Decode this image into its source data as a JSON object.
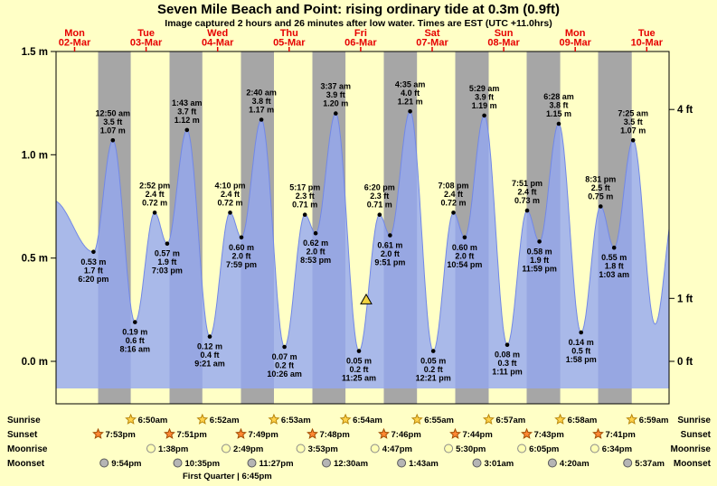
{
  "header": {
    "title": "Seven Mile Beach and Point: rising  ordinary tide at 0.3m (0.9ft)",
    "subtitle": "Image captured 2 hours and 26 minutes after low water. Times are EST (UTC +11.0hrs)"
  },
  "chart_data": {
    "type": "area",
    "title": "Seven Mile Beach and Point: rising  ordinary tide at 0.3m (0.9ft)",
    "subtitle": "Image captured 2 hours and 26 minutes after low water. Times are EST (UTC +11.0hrs)",
    "t_reference": "hours since 00:00 Mon 02-Mar (EST)",
    "time_axis": {
      "start_hours": 5.77,
      "end_hours": 211.5
    },
    "y_axis": {
      "min_m": -0.2055,
      "max_m": 1.5,
      "area_base_m": -0.131,
      "left_ticks": [
        {
          "label": "1.5 m",
          "value_m": 1.5
        },
        {
          "label": "1.0 m",
          "value_m": 1.0
        },
        {
          "label": "0.5 m",
          "value_m": 0.5
        },
        {
          "label": "0.0 m",
          "value_m": 0.0
        }
      ],
      "right_ticks": [
        {
          "label": "4 ft",
          "value_m": 1.2192
        },
        {
          "label": "1 ft",
          "value_m": 0.3048
        },
        {
          "label": "0 ft",
          "value_m": 0.0
        }
      ]
    },
    "days": [
      {
        "name": "Mon",
        "date": "02-Mar"
      },
      {
        "name": "Tue",
        "date": "03-Mar"
      },
      {
        "name": "Wed",
        "date": "04-Mar"
      },
      {
        "name": "Thu",
        "date": "05-Mar"
      },
      {
        "name": "Fri",
        "date": "06-Mar"
      },
      {
        "name": "Sat",
        "date": "07-Mar"
      },
      {
        "name": "Sun",
        "date": "08-Mar"
      },
      {
        "name": "Mon",
        "date": "09-Mar"
      },
      {
        "name": "Tue",
        "date": "10-Mar"
      }
    ],
    "extremes": [
      {
        "t": 4.6,
        "h": 0.78,
        "kind": "edge"
      },
      {
        "t": 18.333,
        "h": 0.53,
        "kind": "low",
        "labels": [
          "0.53 m",
          "1.7 ft",
          "6:20 pm"
        ]
      },
      {
        "t": 24.833,
        "h": 1.07,
        "kind": "high",
        "labels": [
          "12:50 am",
          "3.5 ft",
          "1.07 m"
        ]
      },
      {
        "t": 32.267,
        "h": 0.19,
        "kind": "low",
        "labels": [
          "0.19 m",
          "0.6 ft",
          "8:16 am"
        ]
      },
      {
        "t": 38.867,
        "h": 0.72,
        "kind": "high",
        "labels": [
          "2:52 pm",
          "2.4 ft",
          "0.72 m"
        ]
      },
      {
        "t": 43.05,
        "h": 0.57,
        "kind": "low",
        "labels": [
          "0.57 m",
          "1.9 ft",
          "7:03 pm"
        ]
      },
      {
        "t": 49.717,
        "h": 1.12,
        "kind": "high",
        "labels": [
          "1:43 am",
          "3.7 ft",
          "1.12 m"
        ]
      },
      {
        "t": 57.35,
        "h": 0.12,
        "kind": "low",
        "labels": [
          "0.12 m",
          "0.4 ft",
          "9:21 am"
        ]
      },
      {
        "t": 64.167,
        "h": 0.72,
        "kind": "high",
        "labels": [
          "4:10 pm",
          "2.4 ft",
          "0.72 m"
        ]
      },
      {
        "t": 67.983,
        "h": 0.6,
        "kind": "low",
        "labels": [
          "0.60 m",
          "2.0 ft",
          "7:59 pm"
        ]
      },
      {
        "t": 74.667,
        "h": 1.17,
        "kind": "high",
        "labels": [
          "2:40 am",
          "3.8 ft",
          "1.17 m"
        ]
      },
      {
        "t": 82.433,
        "h": 0.07,
        "kind": "low",
        "labels": [
          "0.07 m",
          "0.2 ft",
          "10:26 am"
        ]
      },
      {
        "t": 89.283,
        "h": 0.71,
        "kind": "high",
        "labels": [
          "5:17 pm",
          "2.3 ft",
          "0.71 m"
        ]
      },
      {
        "t": 92.883,
        "h": 0.62,
        "kind": "low",
        "labels": [
          "0.62 m",
          "2.0 ft",
          "8:53 pm"
        ]
      },
      {
        "t": 99.617,
        "h": 1.2,
        "kind": "high",
        "labels": [
          "3:37 am",
          "3.9 ft",
          "1.20 m"
        ]
      },
      {
        "t": 107.417,
        "h": 0.05,
        "kind": "low",
        "labels": [
          "0.05 m",
          "0.2 ft",
          "11:25 am"
        ]
      },
      {
        "t": 114.333,
        "h": 0.71,
        "kind": "high",
        "labels": [
          "6:20 pm",
          "2.3 ft",
          "0.71 m"
        ]
      },
      {
        "t": 117.85,
        "h": 0.61,
        "kind": "low",
        "labels": [
          "0.61 m",
          "2.0 ft",
          "9:51 pm"
        ]
      },
      {
        "t": 124.583,
        "h": 1.21,
        "kind": "high",
        "labels": [
          "4:35 am",
          "4.0 ft",
          "1.21 m"
        ]
      },
      {
        "t": 132.35,
        "h": 0.05,
        "kind": "low",
        "labels": [
          "0.05 m",
          "0.2 ft",
          "12:21 pm"
        ]
      },
      {
        "t": 139.133,
        "h": 0.72,
        "kind": "high",
        "labels": [
          "7:08 pm",
          "2.4 ft",
          "0.72 m"
        ]
      },
      {
        "t": 142.9,
        "h": 0.6,
        "kind": "low",
        "labels": [
          "0.60 m",
          "2.0 ft",
          "10:54 pm"
        ]
      },
      {
        "t": 149.483,
        "h": 1.19,
        "kind": "high",
        "labels": [
          "5:29 am",
          "3.9 ft",
          "1.19 m"
        ]
      },
      {
        "t": 157.183,
        "h": 0.08,
        "kind": "low",
        "labels": [
          "0.08 m",
          "0.3 ft",
          "1:11 pm"
        ]
      },
      {
        "t": 163.85,
        "h": 0.73,
        "kind": "high",
        "labels": [
          "7:51 pm",
          "2.4 ft",
          "0.73 m"
        ]
      },
      {
        "t": 167.983,
        "h": 0.58,
        "kind": "low",
        "labels": [
          "0.58 m",
          "1.9 ft",
          "11:59 pm"
        ]
      },
      {
        "t": 174.467,
        "h": 1.15,
        "kind": "high",
        "labels": [
          "6:28 am",
          "3.8 ft",
          "1.15 m"
        ]
      },
      {
        "t": 181.967,
        "h": 0.14,
        "kind": "low",
        "labels": [
          "0.14 m",
          "0.5 ft",
          "1:58 pm"
        ]
      },
      {
        "t": 188.517,
        "h": 0.75,
        "kind": "high",
        "labels": [
          "8:31 pm",
          "2.5 ft",
          "0.75 m"
        ]
      },
      {
        "t": 193.05,
        "h": 0.55,
        "kind": "low",
        "labels": [
          "0.55 m",
          "1.8 ft",
          "1:03 am"
        ]
      },
      {
        "t": 199.417,
        "h": 1.07,
        "kind": "high",
        "labels": [
          "7:25 am",
          "3.5 ft",
          "1.07 m"
        ]
      },
      {
        "t": 206.8,
        "h": 0.18,
        "kind": "edge"
      },
      {
        "t": 213.6,
        "h": 0.77,
        "kind": "edge"
      }
    ],
    "current_marker": {
      "t": 109.85,
      "h": 0.3
    },
    "astro": {
      "rows": [
        {
          "label": "Sunrise",
          "icon": "sunrise-star",
          "entries": [
            {
              "t": 30.833,
              "time": "6:50am"
            },
            {
              "t": 54.867,
              "time": "6:52am"
            },
            {
              "t": 78.883,
              "time": "6:53am"
            },
            {
              "t": 102.9,
              "time": "6:54am"
            },
            {
              "t": 126.917,
              "time": "6:55am"
            },
            {
              "t": 150.95,
              "time": "6:57am"
            },
            {
              "t": 174.967,
              "time": "6:58am"
            },
            {
              "t": 198.983,
              "time": "6:59am"
            }
          ]
        },
        {
          "label": "Sunset",
          "icon": "sunset-star",
          "entries": [
            {
              "t": 19.883,
              "time": "7:53pm"
            },
            {
              "t": 43.85,
              "time": "7:51pm"
            },
            {
              "t": 67.817,
              "time": "7:49pm"
            },
            {
              "t": 91.8,
              "time": "7:48pm"
            },
            {
              "t": 115.767,
              "time": "7:46pm"
            },
            {
              "t": 139.733,
              "time": "7:44pm"
            },
            {
              "t": 163.717,
              "time": "7:43pm"
            },
            {
              "t": 187.683,
              "time": "7:41pm"
            }
          ]
        },
        {
          "label": "Moonrise",
          "icon": "moonrise-circle",
          "entries": [
            {
              "t": 37.633,
              "time": "1:38pm"
            },
            {
              "t": 62.817,
              "time": "2:49pm"
            },
            {
              "t": 87.883,
              "time": "3:53pm"
            },
            {
              "t": 112.783,
              "time": "4:47pm"
            },
            {
              "t": 137.5,
              "time": "5:30pm"
            },
            {
              "t": 162.083,
              "time": "6:05pm"
            },
            {
              "t": 186.567,
              "time": "6:34pm"
            }
          ]
        },
        {
          "label": "Moonset",
          "icon": "moonset-circle",
          "entries": [
            {
              "t": 21.9,
              "time": "9:54pm"
            },
            {
              "t": 46.583,
              "time": "10:35pm"
            },
            {
              "t": 71.45,
              "time": "11:27pm"
            },
            {
              "t": 96.5,
              "time": "12:30am"
            },
            {
              "t": 121.717,
              "time": "1:43am"
            },
            {
              "t": 147.017,
              "time": "3:01am"
            },
            {
              "t": 172.333,
              "time": "4:20am"
            },
            {
              "t": 197.617,
              "time": "5:37am"
            }
          ]
        }
      ],
      "moon_phase_text": "First Quarter | 6:45pm"
    },
    "colors": {
      "background": "#ffffc6",
      "day_band": "#ffffc6",
      "night_band": "#a6a6a6",
      "tide_fill": "#93a7f1",
      "tide_fill_opacity": 0.8,
      "tide_stroke": "#7288e6",
      "day_label": "#e60000",
      "marker_fill": "#f2d440",
      "sunrise_star_fill": "#ffd24a",
      "sunrise_star_stroke": "#b8860b",
      "sunset_star_fill": "#ff8833",
      "sunset_star_stroke": "#a04a00",
      "moonrise_fill": "#ffffb3",
      "moonrise_stroke": "#8a8a8a",
      "moonset_fill": "#b5b5b5",
      "moonset_stroke": "#5a5a5a"
    }
  }
}
